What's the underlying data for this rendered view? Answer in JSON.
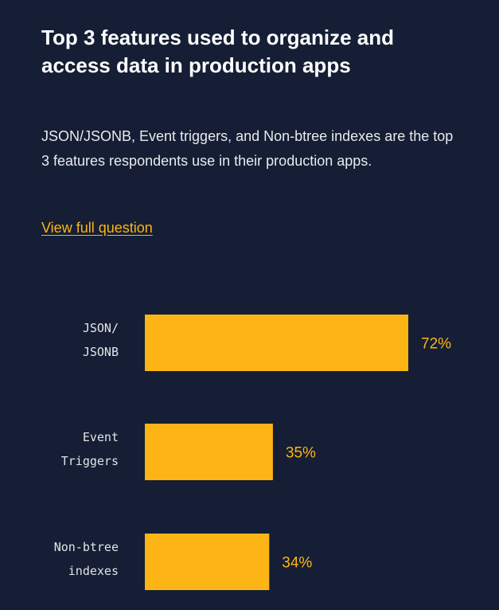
{
  "header": {
    "title": "Top 3 features used to organize and access data in production apps",
    "description": "JSON/JSONB, Event triggers, and Non-btree indexes are the top 3 features respondents use in their production apps.",
    "link_label": "View full question"
  },
  "colors": {
    "background": "#151e34",
    "bar": "#fdb515",
    "accent": "#fdb515"
  },
  "chart_data": {
    "type": "bar",
    "orientation": "horizontal",
    "categories": [
      [
        "JSON/",
        "JSONB"
      ],
      [
        "Event",
        "Triggers"
      ],
      [
        "Non-btree",
        "indexes"
      ]
    ],
    "values": [
      72,
      35,
      34
    ],
    "value_labels": [
      "72%",
      "35%",
      "34%"
    ],
    "unit": "%",
    "grid": false
  }
}
